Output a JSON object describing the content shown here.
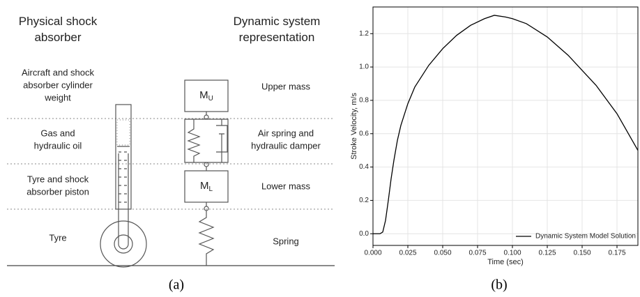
{
  "panel_a": {
    "label": "(a)",
    "left_header": [
      "Physical shock",
      "absorber"
    ],
    "right_header": [
      "Dynamic system",
      "representation"
    ],
    "left_labels": [
      [
        "Aircraft and shock",
        "absorber cylinder",
        "weight"
      ],
      [
        "Gas and",
        "hydraulic oil"
      ],
      [
        "Tyre and shock",
        "absorber piston"
      ],
      [
        "Tyre"
      ]
    ],
    "right_labels": [
      [
        "Upper mass"
      ],
      [
        "Air spring and",
        "hydraulic damper"
      ],
      [
        "Lower mass"
      ],
      [
        "Spring"
      ]
    ],
    "masses": [
      {
        "symbol": "M",
        "subscript": "U"
      },
      {
        "symbol": "M",
        "subscript": "L"
      }
    ]
  },
  "panel_b": {
    "label": "(b)"
  },
  "chart_data": {
    "type": "line",
    "x_label": "Time (sec)",
    "y_label": "Stroke Velocity, m/s",
    "x": [
      0,
      0.005,
      0.007,
      0.009,
      0.011,
      0.013,
      0.015,
      0.0175,
      0.02,
      0.025,
      0.03,
      0.04,
      0.05,
      0.06,
      0.07,
      0.08,
      0.087,
      0.095,
      0.1,
      0.11,
      0.125,
      0.14,
      0.15,
      0.16,
      0.175,
      0.19
    ],
    "series": [
      {
        "name": "Dynamic System Model Solution",
        "color": "#000000",
        "values": [
          0,
          0,
          0.01,
          0.08,
          0.2,
          0.33,
          0.44,
          0.56,
          0.65,
          0.78,
          0.88,
          1.01,
          1.11,
          1.19,
          1.25,
          1.29,
          1.31,
          1.3,
          1.29,
          1.26,
          1.18,
          1.07,
          0.98,
          0.89,
          0.72,
          0.5
        ]
      }
    ],
    "xlim": [
      0,
      0.19
    ],
    "ylim": [
      -0.07,
      1.36
    ],
    "xticks": [
      {
        "value": 0,
        "label": "0.000"
      },
      {
        "value": 0.025,
        "label": "0.025"
      },
      {
        "value": 0.05,
        "label": "0.050"
      },
      {
        "value": 0.075,
        "label": "0.075"
      },
      {
        "value": 0.1,
        "label": "0.100"
      },
      {
        "value": 0.125,
        "label": "0.125"
      },
      {
        "value": 0.15,
        "label": "0.150"
      },
      {
        "value": 0.175,
        "label": "0.175"
      }
    ],
    "yticks": [
      {
        "value": 0,
        "label": "0.0"
      },
      0.2,
      0.4,
      0.6,
      0.8,
      {
        "value": 1,
        "label": "1.0"
      },
      1.2
    ],
    "grid": true,
    "legend": "lower right"
  }
}
